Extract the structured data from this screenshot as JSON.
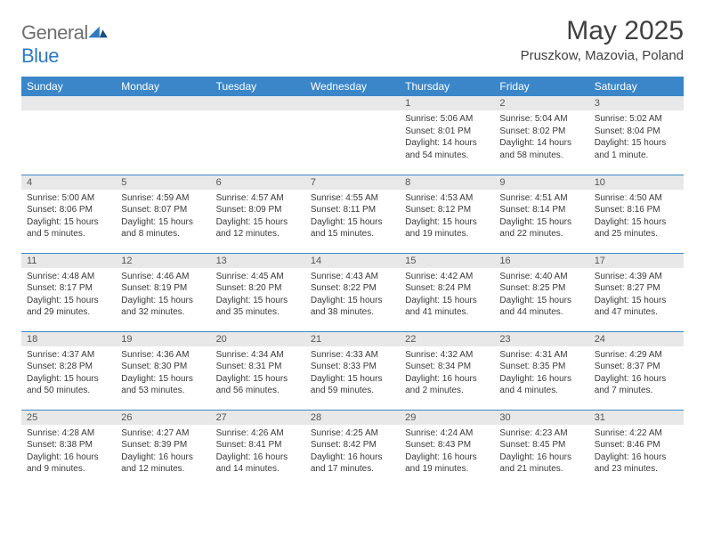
{
  "logo": {
    "text1": "General",
    "text2": "Blue"
  },
  "title": {
    "month": "May 2025",
    "location": "Pruszkow, Mazovia, Poland"
  },
  "colors": {
    "header_bg": "#3a86c8",
    "header_fg": "#ffffff",
    "daynum_bg": "#e8e8e8",
    "text": "#3a3a3a",
    "rule": "#3a86c8"
  },
  "daynames": [
    "Sunday",
    "Monday",
    "Tuesday",
    "Wednesday",
    "Thursday",
    "Friday",
    "Saturday"
  ],
  "weeks": [
    [
      {
        "n": "",
        "sr": "",
        "ss": "",
        "dl": ""
      },
      {
        "n": "",
        "sr": "",
        "ss": "",
        "dl": ""
      },
      {
        "n": "",
        "sr": "",
        "ss": "",
        "dl": ""
      },
      {
        "n": "",
        "sr": "",
        "ss": "",
        "dl": ""
      },
      {
        "n": "1",
        "sr": "Sunrise: 5:06 AM",
        "ss": "Sunset: 8:01 PM",
        "dl": "Daylight: 14 hours and 54 minutes."
      },
      {
        "n": "2",
        "sr": "Sunrise: 5:04 AM",
        "ss": "Sunset: 8:02 PM",
        "dl": "Daylight: 14 hours and 58 minutes."
      },
      {
        "n": "3",
        "sr": "Sunrise: 5:02 AM",
        "ss": "Sunset: 8:04 PM",
        "dl": "Daylight: 15 hours and 1 minute."
      }
    ],
    [
      {
        "n": "4",
        "sr": "Sunrise: 5:00 AM",
        "ss": "Sunset: 8:06 PM",
        "dl": "Daylight: 15 hours and 5 minutes."
      },
      {
        "n": "5",
        "sr": "Sunrise: 4:59 AM",
        "ss": "Sunset: 8:07 PM",
        "dl": "Daylight: 15 hours and 8 minutes."
      },
      {
        "n": "6",
        "sr": "Sunrise: 4:57 AM",
        "ss": "Sunset: 8:09 PM",
        "dl": "Daylight: 15 hours and 12 minutes."
      },
      {
        "n": "7",
        "sr": "Sunrise: 4:55 AM",
        "ss": "Sunset: 8:11 PM",
        "dl": "Daylight: 15 hours and 15 minutes."
      },
      {
        "n": "8",
        "sr": "Sunrise: 4:53 AM",
        "ss": "Sunset: 8:12 PM",
        "dl": "Daylight: 15 hours and 19 minutes."
      },
      {
        "n": "9",
        "sr": "Sunrise: 4:51 AM",
        "ss": "Sunset: 8:14 PM",
        "dl": "Daylight: 15 hours and 22 minutes."
      },
      {
        "n": "10",
        "sr": "Sunrise: 4:50 AM",
        "ss": "Sunset: 8:16 PM",
        "dl": "Daylight: 15 hours and 25 minutes."
      }
    ],
    [
      {
        "n": "11",
        "sr": "Sunrise: 4:48 AM",
        "ss": "Sunset: 8:17 PM",
        "dl": "Daylight: 15 hours and 29 minutes."
      },
      {
        "n": "12",
        "sr": "Sunrise: 4:46 AM",
        "ss": "Sunset: 8:19 PM",
        "dl": "Daylight: 15 hours and 32 minutes."
      },
      {
        "n": "13",
        "sr": "Sunrise: 4:45 AM",
        "ss": "Sunset: 8:20 PM",
        "dl": "Daylight: 15 hours and 35 minutes."
      },
      {
        "n": "14",
        "sr": "Sunrise: 4:43 AM",
        "ss": "Sunset: 8:22 PM",
        "dl": "Daylight: 15 hours and 38 minutes."
      },
      {
        "n": "15",
        "sr": "Sunrise: 4:42 AM",
        "ss": "Sunset: 8:24 PM",
        "dl": "Daylight: 15 hours and 41 minutes."
      },
      {
        "n": "16",
        "sr": "Sunrise: 4:40 AM",
        "ss": "Sunset: 8:25 PM",
        "dl": "Daylight: 15 hours and 44 minutes."
      },
      {
        "n": "17",
        "sr": "Sunrise: 4:39 AM",
        "ss": "Sunset: 8:27 PM",
        "dl": "Daylight: 15 hours and 47 minutes."
      }
    ],
    [
      {
        "n": "18",
        "sr": "Sunrise: 4:37 AM",
        "ss": "Sunset: 8:28 PM",
        "dl": "Daylight: 15 hours and 50 minutes."
      },
      {
        "n": "19",
        "sr": "Sunrise: 4:36 AM",
        "ss": "Sunset: 8:30 PM",
        "dl": "Daylight: 15 hours and 53 minutes."
      },
      {
        "n": "20",
        "sr": "Sunrise: 4:34 AM",
        "ss": "Sunset: 8:31 PM",
        "dl": "Daylight: 15 hours and 56 minutes."
      },
      {
        "n": "21",
        "sr": "Sunrise: 4:33 AM",
        "ss": "Sunset: 8:33 PM",
        "dl": "Daylight: 15 hours and 59 minutes."
      },
      {
        "n": "22",
        "sr": "Sunrise: 4:32 AM",
        "ss": "Sunset: 8:34 PM",
        "dl": "Daylight: 16 hours and 2 minutes."
      },
      {
        "n": "23",
        "sr": "Sunrise: 4:31 AM",
        "ss": "Sunset: 8:35 PM",
        "dl": "Daylight: 16 hours and 4 minutes."
      },
      {
        "n": "24",
        "sr": "Sunrise: 4:29 AM",
        "ss": "Sunset: 8:37 PM",
        "dl": "Daylight: 16 hours and 7 minutes."
      }
    ],
    [
      {
        "n": "25",
        "sr": "Sunrise: 4:28 AM",
        "ss": "Sunset: 8:38 PM",
        "dl": "Daylight: 16 hours and 9 minutes."
      },
      {
        "n": "26",
        "sr": "Sunrise: 4:27 AM",
        "ss": "Sunset: 8:39 PM",
        "dl": "Daylight: 16 hours and 12 minutes."
      },
      {
        "n": "27",
        "sr": "Sunrise: 4:26 AM",
        "ss": "Sunset: 8:41 PM",
        "dl": "Daylight: 16 hours and 14 minutes."
      },
      {
        "n": "28",
        "sr": "Sunrise: 4:25 AM",
        "ss": "Sunset: 8:42 PM",
        "dl": "Daylight: 16 hours and 17 minutes."
      },
      {
        "n": "29",
        "sr": "Sunrise: 4:24 AM",
        "ss": "Sunset: 8:43 PM",
        "dl": "Daylight: 16 hours and 19 minutes."
      },
      {
        "n": "30",
        "sr": "Sunrise: 4:23 AM",
        "ss": "Sunset: 8:45 PM",
        "dl": "Daylight: 16 hours and 21 minutes."
      },
      {
        "n": "31",
        "sr": "Sunrise: 4:22 AM",
        "ss": "Sunset: 8:46 PM",
        "dl": "Daylight: 16 hours and 23 minutes."
      }
    ]
  ]
}
